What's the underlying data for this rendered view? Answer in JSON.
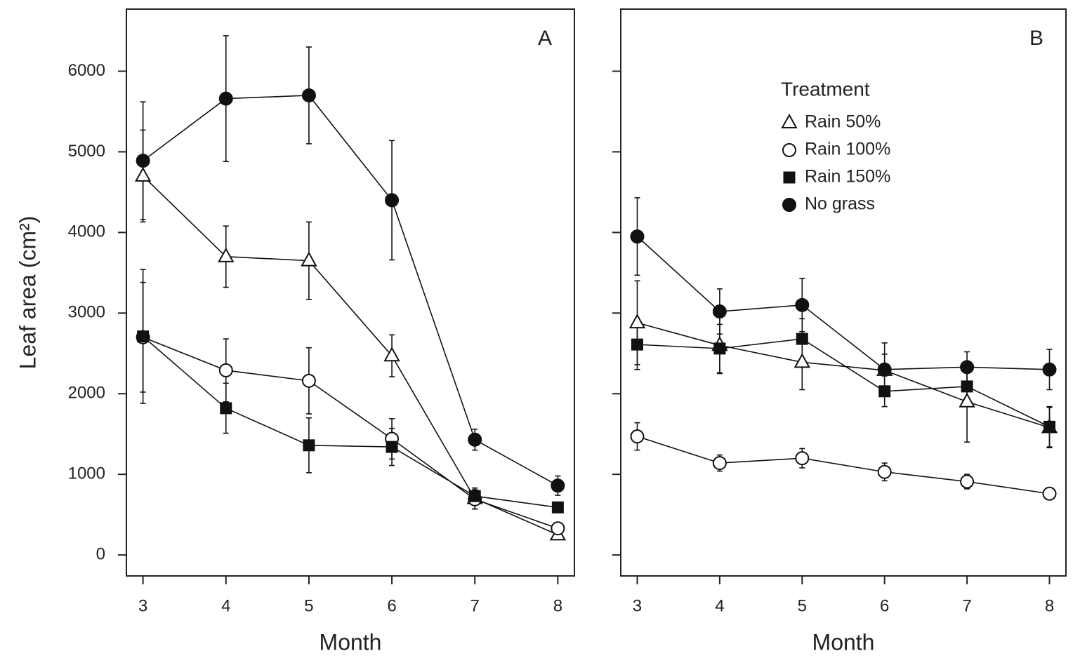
{
  "chart_data": [
    {
      "type": "line",
      "panel_label": "A",
      "ylabel": "Leaf area (cm²)",
      "xlabel": "Month",
      "x": [
        3,
        4,
        5,
        6,
        7,
        8
      ],
      "xlim": [
        2.8,
        8.2
      ],
      "xticks": [
        3,
        4,
        5,
        6,
        7,
        8
      ],
      "ylim": [
        -260,
        6770
      ],
      "yticks": [
        0,
        1000,
        2000,
        3000,
        4000,
        5000,
        6000
      ],
      "ytick_labels": true,
      "legend": false,
      "series": [
        {
          "name": "Rain 50%",
          "marker": "triangle-open",
          "color": "#111",
          "values": [
            4700,
            3700,
            3650,
            2470,
            700,
            250
          ],
          "errors": [
            570,
            380,
            480,
            260,
            130,
            60
          ]
        },
        {
          "name": "Rain 100%",
          "marker": "circle-open",
          "color": "#111",
          "values": [
            2700,
            2290,
            2160,
            1440,
            690,
            330
          ],
          "errors": [
            680,
            390,
            410,
            250,
            120,
            60
          ]
        },
        {
          "name": "Rain 150%",
          "marker": "square",
          "color": "#111",
          "values": [
            2710,
            1820,
            1360,
            1340,
            730,
            590
          ],
          "errors": [
            830,
            310,
            340,
            230,
            100,
            50
          ]
        },
        {
          "name": "No grass",
          "marker": "circle",
          "color": "#111",
          "values": [
            4890,
            5660,
            5700,
            4400,
            1430,
            860
          ],
          "errors": [
            730,
            780,
            600,
            740,
            130,
            120
          ]
        }
      ]
    },
    {
      "type": "line",
      "panel_label": "B",
      "xlabel": "Month",
      "legend_title": "Treatment",
      "x": [
        3,
        4,
        5,
        6,
        7,
        8
      ],
      "xlim": [
        2.8,
        8.2
      ],
      "xticks": [
        3,
        4,
        5,
        6,
        7,
        8
      ],
      "ylim": [
        -260,
        6770
      ],
      "yticks": [
        0,
        1000,
        2000,
        3000,
        4000,
        5000,
        6000
      ],
      "ytick_labels": false,
      "legend": true,
      "series": [
        {
          "name": "Rain 50%",
          "marker": "triangle-open",
          "color": "#111",
          "values": [
            2880,
            2600,
            2390,
            2290,
            1900,
            1580
          ],
          "errors": [
            520,
            350,
            340,
            200,
            500,
            250
          ]
        },
        {
          "name": "Rain 100%",
          "marker": "circle-open",
          "color": "#111",
          "values": [
            1470,
            1140,
            1200,
            1030,
            910,
            760
          ],
          "errors": [
            170,
            100,
            120,
            110,
            90,
            50
          ]
        },
        {
          "name": "Rain 150%",
          "marker": "square",
          "color": "#111",
          "values": [
            2610,
            2560,
            2680,
            2030,
            2090,
            1590
          ],
          "errors": [
            310,
            300,
            250,
            190,
            200,
            250
          ]
        },
        {
          "name": "No grass",
          "marker": "circle",
          "color": "#111",
          "values": [
            3950,
            3020,
            3100,
            2300,
            2330,
            2300
          ],
          "errors": [
            480,
            280,
            330,
            330,
            190,
            250
          ]
        }
      ]
    }
  ]
}
